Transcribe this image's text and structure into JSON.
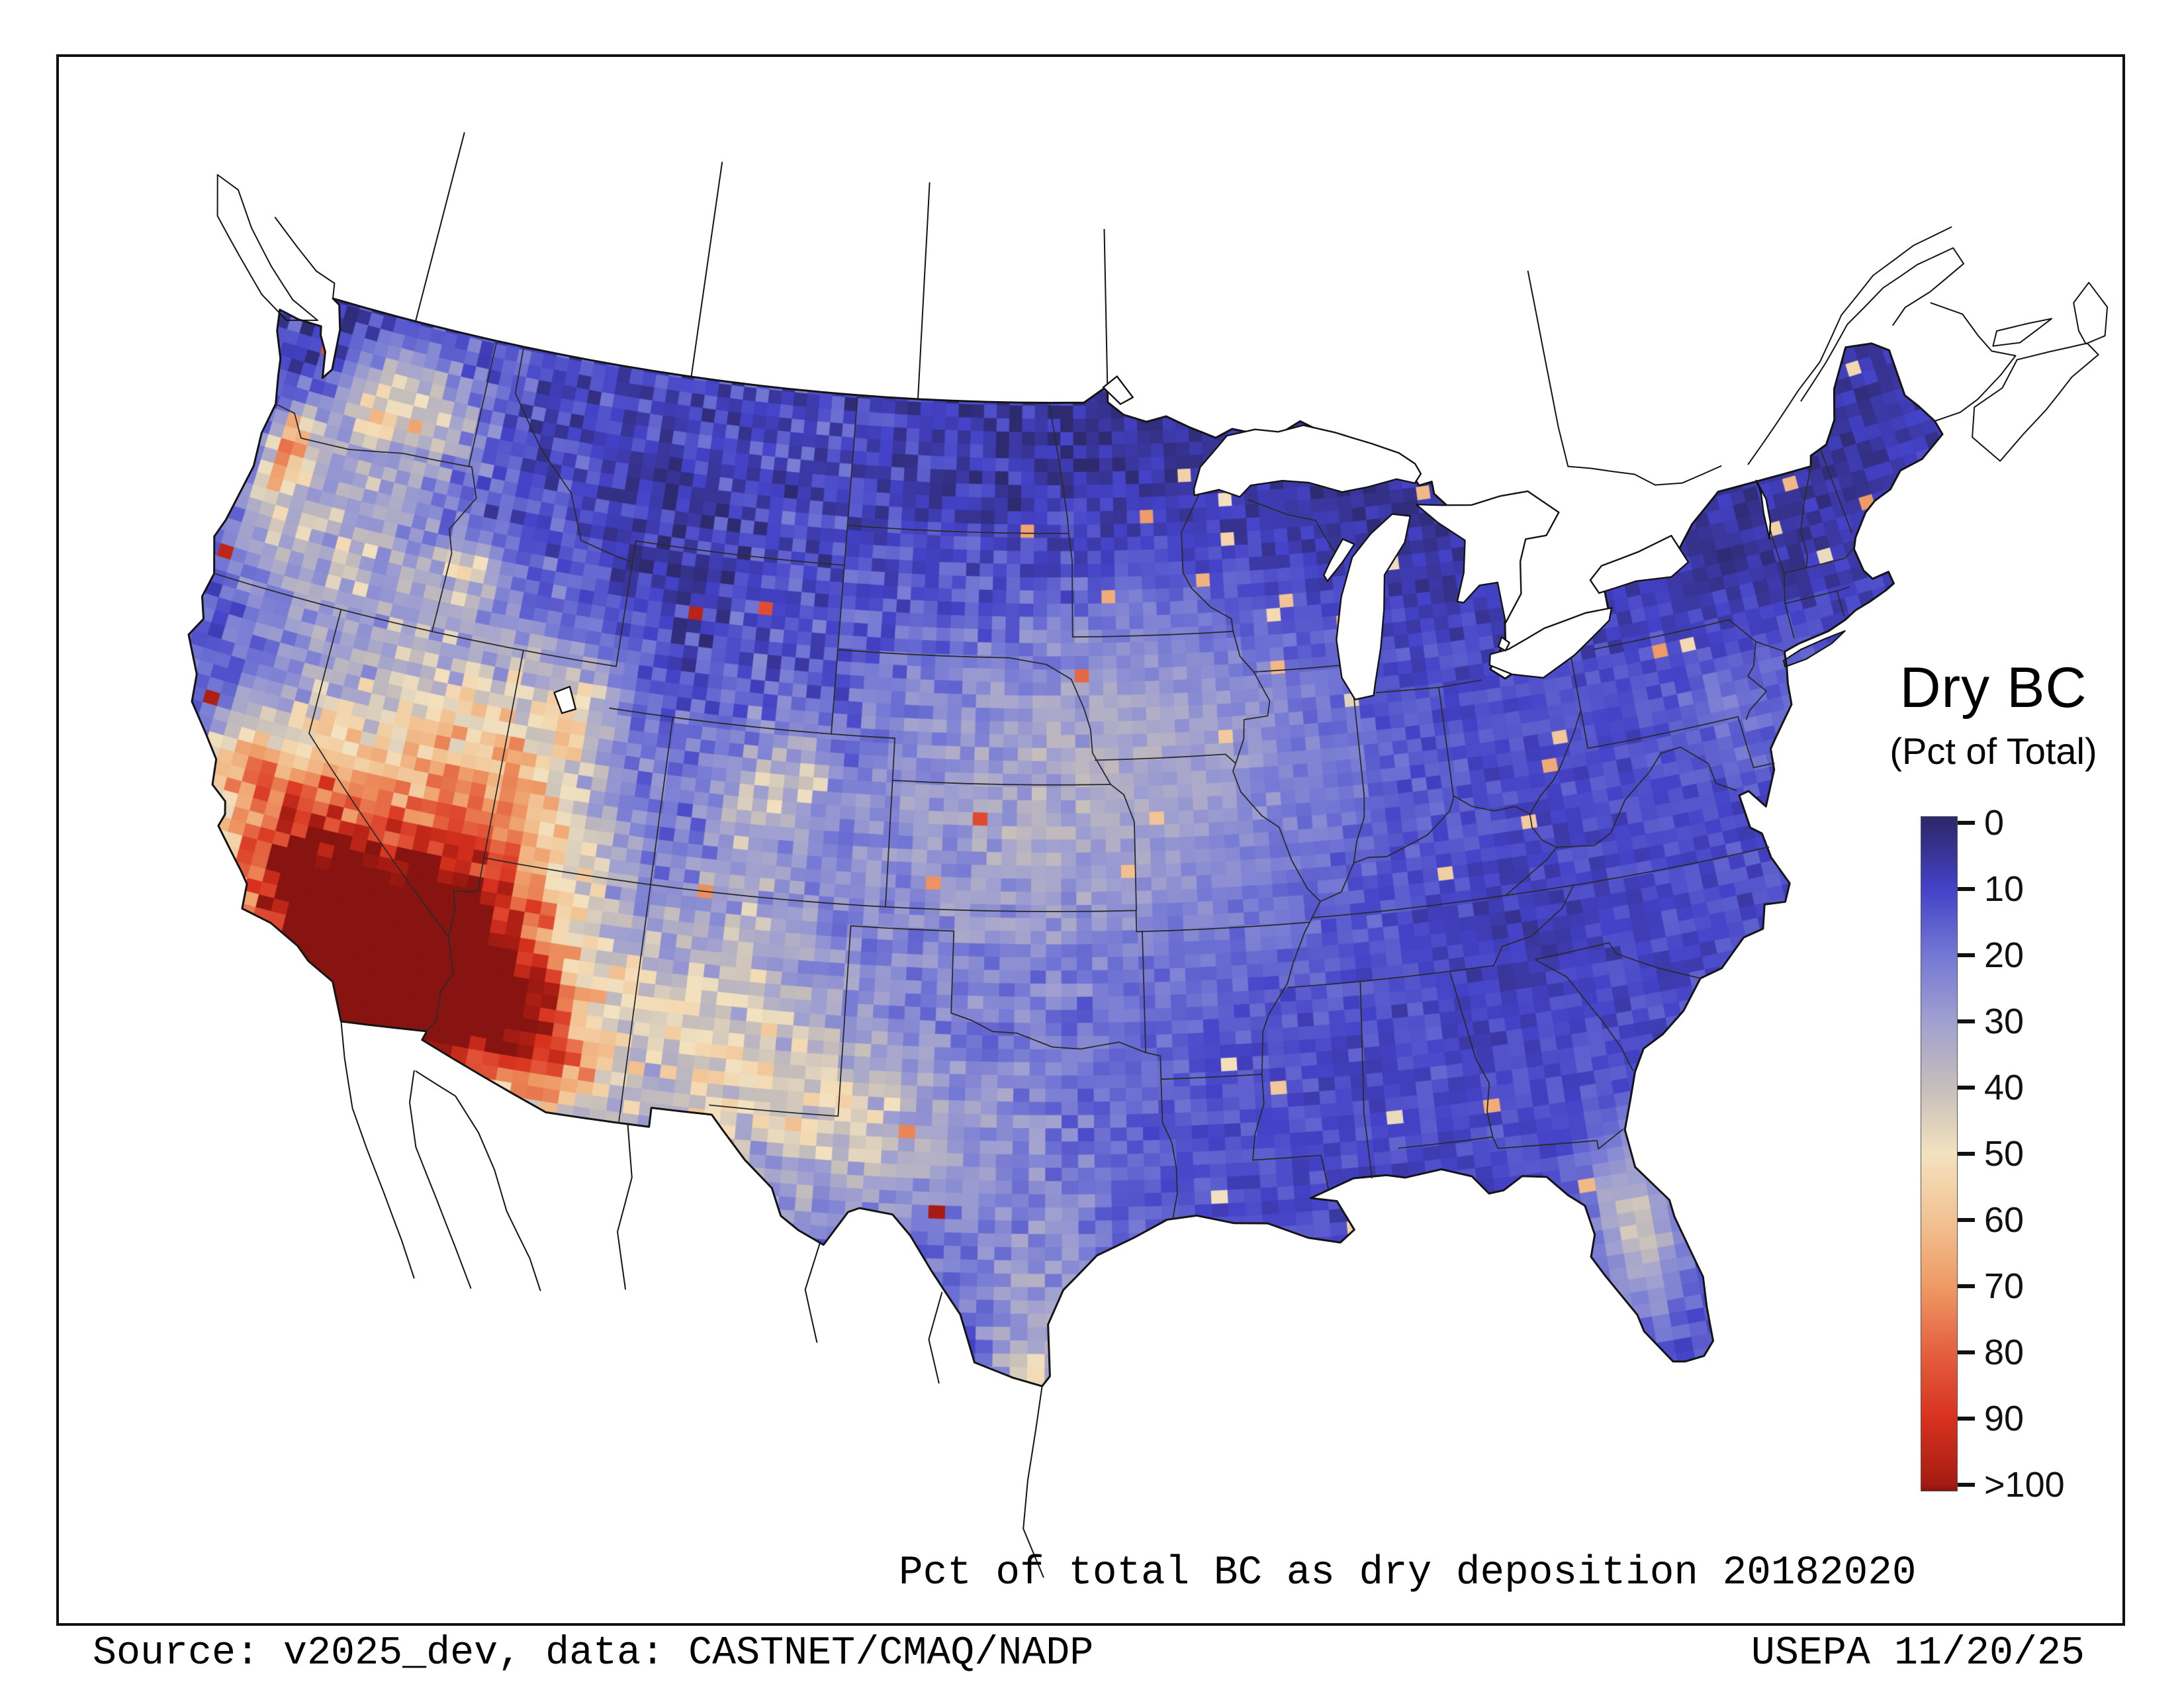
{
  "figure": {
    "caption": "Pct of total BC as dry deposition 20182020",
    "source_line": "Source: v2025_dev, data: CASTNET/CMAQ/NADP",
    "credit_line": "USEPA 11/20/25"
  },
  "legend": {
    "title": "Dry BC",
    "subtitle": "(Pct of Total)",
    "ticks": [
      "0",
      "10",
      "20",
      "30",
      "40",
      "50",
      "60",
      "70",
      "80",
      "90",
      ">100"
    ],
    "colormap": [
      {
        "value": 0,
        "color": "#2e2a70"
      },
      {
        "value": 10,
        "color": "#4442c8"
      },
      {
        "value": 20,
        "color": "#7478d4"
      },
      {
        "value": 30,
        "color": "#a0a0d0"
      },
      {
        "value": 40,
        "color": "#c6beba"
      },
      {
        "value": 50,
        "color": "#f3e2bf"
      },
      {
        "value": 60,
        "color": "#f2c292"
      },
      {
        "value": 70,
        "color": "#ee9a66"
      },
      {
        "value": 80,
        "color": "#e4603f"
      },
      {
        "value": 90,
        "color": "#d8321f"
      },
      {
        "value": 100,
        "color": "#a61c12"
      },
      {
        "value": 106,
        "color": "#871410"
      }
    ]
  },
  "chart_data": {
    "type": "heatmap",
    "title": "Pct of total BC as dry deposition 20182020",
    "variable": "Dry BC (Pct of Total)",
    "period": "2018-2020",
    "region": "Continental United States",
    "colorbar_range": [
      0,
      100
    ],
    "colorbar_ticks": [
      0,
      10,
      20,
      30,
      40,
      50,
      60,
      70,
      80,
      90,
      100
    ],
    "colorbar_note": "scale bottom labeled >100; low values dark blue, high values dark red",
    "pattern": [
      {
        "area": "Southern California / western Arizona / southern Nevada",
        "dry_pct": "70 to >100"
      },
      {
        "area": "Central Valley California",
        "dry_pct": "60-90"
      },
      {
        "area": "Great Basin, western Utah, eastern Oregon",
        "dry_pct": "35-60"
      },
      {
        "area": "Rocky Mountains and western plains",
        "dry_pct": "20-45 mottled"
      },
      {
        "area": "Central and eastern US",
        "dry_pct": "5-30 with scattered 45-70 urban speckles"
      },
      {
        "area": "Upper Midwest, northern New England",
        "dry_pct": "0-15"
      },
      {
        "area": "Central Florida ridge",
        "dry_pct": "40-60"
      },
      {
        "area": "South Texas coast near Brownsville",
        "dry_pct": "50-70"
      }
    ]
  }
}
